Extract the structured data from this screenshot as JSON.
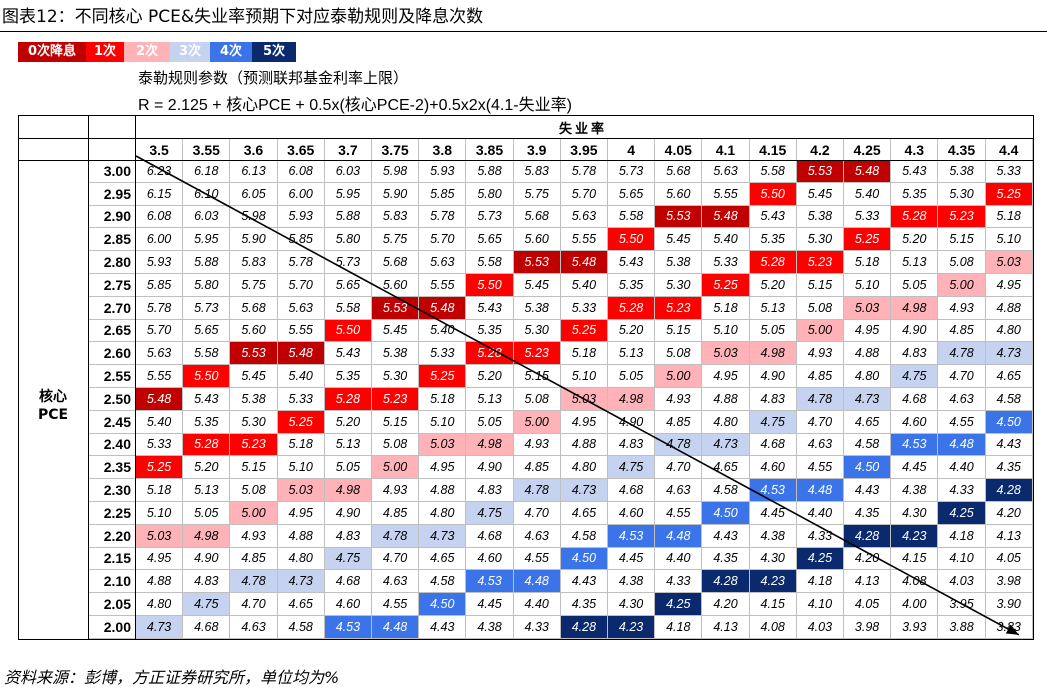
{
  "title": "图表12：不同核心 PCE&失业率预期下对应泰勒规则及降息次数",
  "legend": [
    {
      "label": "0次降息",
      "bg": "#c00000",
      "fg": "#ffffff"
    },
    {
      "label": "1次",
      "bg": "#ff0000",
      "fg": "#ffffff"
    },
    {
      "label": "2次",
      "bg": "#ffb3b8",
      "fg": "#ffffff"
    },
    {
      "label": "3次",
      "bg": "#c5d2f0",
      "fg": "#ffffff"
    },
    {
      "label": "4次",
      "bg": "#3a74e8",
      "fg": "#ffffff"
    },
    {
      "label": "5次",
      "bg": "#0b2a6e",
      "fg": "#ffffff"
    }
  ],
  "note_line1": "泰勒规则参数（预测联邦基金利率上限）",
  "note_line2": "R = 2.125 + 核心PCE + 0.5x(核心PCE-2)+0.5x2x(4.1-失业率)",
  "source": "资料来源：彭博，方正证券研究所，单位均为%",
  "chart_data": {
    "type": "table",
    "x_label": "失业率",
    "y_label": [
      "核心",
      "PCE"
    ],
    "x": [
      "3.5",
      "3.55",
      "3.6",
      "3.65",
      "3.7",
      "3.75",
      "3.8",
      "3.85",
      "3.9",
      "3.95",
      "4",
      "4.05",
      "4.1",
      "4.15",
      "4.2",
      "4.25",
      "4.3",
      "4.35",
      "4.4"
    ],
    "y": [
      "3.00",
      "2.95",
      "2.90",
      "2.85",
      "2.80",
      "2.75",
      "2.70",
      "2.65",
      "2.60",
      "2.55",
      "2.50",
      "2.45",
      "2.40",
      "2.35",
      "2.30",
      "2.25",
      "2.20",
      "2.15",
      "2.10",
      "2.05",
      "2.00"
    ],
    "cells": [
      [
        "6.23",
        "6.18",
        "6.13",
        "6.08",
        "6.03",
        "5.98",
        "5.93",
        "5.88",
        "5.83",
        "5.78",
        "5.73",
        "5.68",
        "5.63",
        "5.58",
        "5.53",
        "5.48",
        "5.43",
        "5.38",
        "5.33"
      ],
      [
        "6.15",
        "6.10",
        "6.05",
        "6.00",
        "5.95",
        "5.90",
        "5.85",
        "5.80",
        "5.75",
        "5.70",
        "5.65",
        "5.60",
        "5.55",
        "5.50",
        "5.45",
        "5.40",
        "5.35",
        "5.30",
        "5.25"
      ],
      [
        "6.08",
        "6.03",
        "5.98",
        "5.93",
        "5.88",
        "5.83",
        "5.78",
        "5.73",
        "5.68",
        "5.63",
        "5.58",
        "5.53",
        "5.48",
        "5.43",
        "5.38",
        "5.33",
        "5.28",
        "5.23",
        "5.18"
      ],
      [
        "6.00",
        "5.95",
        "5.90",
        "5.85",
        "5.80",
        "5.75",
        "5.70",
        "5.65",
        "5.60",
        "5.55",
        "5.50",
        "5.45",
        "5.40",
        "5.35",
        "5.30",
        "5.25",
        "5.20",
        "5.15",
        "5.10"
      ],
      [
        "5.93",
        "5.88",
        "5.83",
        "5.78",
        "5.73",
        "5.68",
        "5.63",
        "5.58",
        "5.53",
        "5.48",
        "5.43",
        "5.38",
        "5.33",
        "5.28",
        "5.23",
        "5.18",
        "5.13",
        "5.08",
        "5.03"
      ],
      [
        "5.85",
        "5.80",
        "5.75",
        "5.70",
        "5.65",
        "5.60",
        "5.55",
        "5.50",
        "5.45",
        "5.40",
        "5.35",
        "5.30",
        "5.25",
        "5.20",
        "5.15",
        "5.10",
        "5.05",
        "5.00",
        "4.95"
      ],
      [
        "5.78",
        "5.73",
        "5.68",
        "5.63",
        "5.58",
        "5.53",
        "5.48",
        "5.43",
        "5.38",
        "5.33",
        "5.28",
        "5.23",
        "5.18",
        "5.13",
        "5.08",
        "5.03",
        "4.98",
        "4.93",
        "4.88"
      ],
      [
        "5.70",
        "5.65",
        "5.60",
        "5.55",
        "5.50",
        "5.45",
        "5.40",
        "5.35",
        "5.30",
        "5.25",
        "5.20",
        "5.15",
        "5.10",
        "5.05",
        "5.00",
        "4.95",
        "4.90",
        "4.85",
        "4.80"
      ],
      [
        "5.63",
        "5.58",
        "5.53",
        "5.48",
        "5.43",
        "5.38",
        "5.33",
        "5.28",
        "5.23",
        "5.18",
        "5.13",
        "5.08",
        "5.03",
        "4.98",
        "4.93",
        "4.88",
        "4.83",
        "4.78",
        "4.73"
      ],
      [
        "5.55",
        "5.50",
        "5.45",
        "5.40",
        "5.35",
        "5.30",
        "5.25",
        "5.20",
        "5.15",
        "5.10",
        "5.05",
        "5.00",
        "4.95",
        "4.90",
        "4.85",
        "4.80",
        "4.75",
        "4.70",
        "4.65"
      ],
      [
        "5.48",
        "5.43",
        "5.38",
        "5.33",
        "5.28",
        "5.23",
        "5.18",
        "5.13",
        "5.08",
        "5.03",
        "4.98",
        "4.93",
        "4.88",
        "4.83",
        "4.78",
        "4.73",
        "4.68",
        "4.63",
        "4.58"
      ],
      [
        "5.40",
        "5.35",
        "5.30",
        "5.25",
        "5.20",
        "5.15",
        "5.10",
        "5.05",
        "5.00",
        "4.95",
        "4.90",
        "4.85",
        "4.80",
        "4.75",
        "4.70",
        "4.65",
        "4.60",
        "4.55",
        "4.50"
      ],
      [
        "5.33",
        "5.28",
        "5.23",
        "5.18",
        "5.13",
        "5.08",
        "5.03",
        "4.98",
        "4.93",
        "4.88",
        "4.83",
        "4.78",
        "4.73",
        "4.68",
        "4.63",
        "4.58",
        "4.53",
        "4.48",
        "4.43"
      ],
      [
        "5.25",
        "5.20",
        "5.15",
        "5.10",
        "5.05",
        "5.00",
        "4.95",
        "4.90",
        "4.85",
        "4.80",
        "4.75",
        "4.70",
        "4.65",
        "4.60",
        "4.55",
        "4.50",
        "4.45",
        "4.40",
        "4.35"
      ],
      [
        "5.18",
        "5.13",
        "5.08",
        "5.03",
        "4.98",
        "4.93",
        "4.88",
        "4.83",
        "4.78",
        "4.73",
        "4.68",
        "4.63",
        "4.58",
        "4.53",
        "4.48",
        "4.43",
        "4.38",
        "4.33",
        "4.28"
      ],
      [
        "5.10",
        "5.05",
        "5.00",
        "4.95",
        "4.90",
        "4.85",
        "4.80",
        "4.75",
        "4.70",
        "4.65",
        "4.60",
        "4.55",
        "4.50",
        "4.45",
        "4.40",
        "4.35",
        "4.30",
        "4.25",
        "4.20"
      ],
      [
        "5.03",
        "4.98",
        "4.93",
        "4.88",
        "4.83",
        "4.78",
        "4.73",
        "4.68",
        "4.63",
        "4.58",
        "4.53",
        "4.48",
        "4.43",
        "4.38",
        "4.33",
        "4.28",
        "4.23",
        "4.18",
        "4.13"
      ],
      [
        "4.95",
        "4.90",
        "4.85",
        "4.80",
        "4.75",
        "4.70",
        "4.65",
        "4.60",
        "4.55",
        "4.50",
        "4.45",
        "4.40",
        "4.35",
        "4.30",
        "4.25",
        "4.20",
        "4.15",
        "4.10",
        "4.05"
      ],
      [
        "4.88",
        "4.83",
        "4.78",
        "4.73",
        "4.68",
        "4.63",
        "4.58",
        "4.53",
        "4.48",
        "4.43",
        "4.38",
        "4.33",
        "4.28",
        "4.23",
        "4.18",
        "4.13",
        "4.08",
        "4.03",
        "3.98"
      ],
      [
        "4.80",
        "4.75",
        "4.70",
        "4.65",
        "4.60",
        "4.55",
        "4.50",
        "4.45",
        "4.40",
        "4.35",
        "4.30",
        "4.25",
        "4.20",
        "4.15",
        "4.10",
        "4.05",
        "4.00",
        "3.95",
        "3.90"
      ],
      [
        "4.73",
        "4.68",
        "4.63",
        "4.58",
        "4.53",
        "4.48",
        "4.43",
        "4.38",
        "4.33",
        "4.28",
        "4.23",
        "4.18",
        "4.13",
        "4.08",
        "4.03",
        "3.98",
        "3.93",
        "3.88",
        "3.83"
      ]
    ],
    "highlight_levels": [
      {
        "value": "5.53",
        "level": 0
      },
      {
        "value": "5.48",
        "level": 0
      },
      {
        "value": "5.50",
        "level": 1
      },
      {
        "value": "5.28",
        "level": 1
      },
      {
        "value": "5.23",
        "level": 1
      },
      {
        "value": "5.25",
        "level": 1
      },
      {
        "value": "5.00",
        "level": 2
      },
      {
        "value": "5.03",
        "level": 2
      },
      {
        "value": "4.98",
        "level": 2
      },
      {
        "value": "4.78",
        "level": 3
      },
      {
        "value": "4.73",
        "level": 3
      },
      {
        "value": "4.75",
        "level": 3
      },
      {
        "value": "4.50",
        "level": 4
      },
      {
        "value": "4.53",
        "level": 4
      },
      {
        "value": "4.48",
        "level": 4
      },
      {
        "value": "4.28",
        "level": 5
      },
      {
        "value": "4.23",
        "level": 5
      },
      {
        "value": "4.25",
        "level": 5
      }
    ],
    "diagonal_arrow": true
  }
}
